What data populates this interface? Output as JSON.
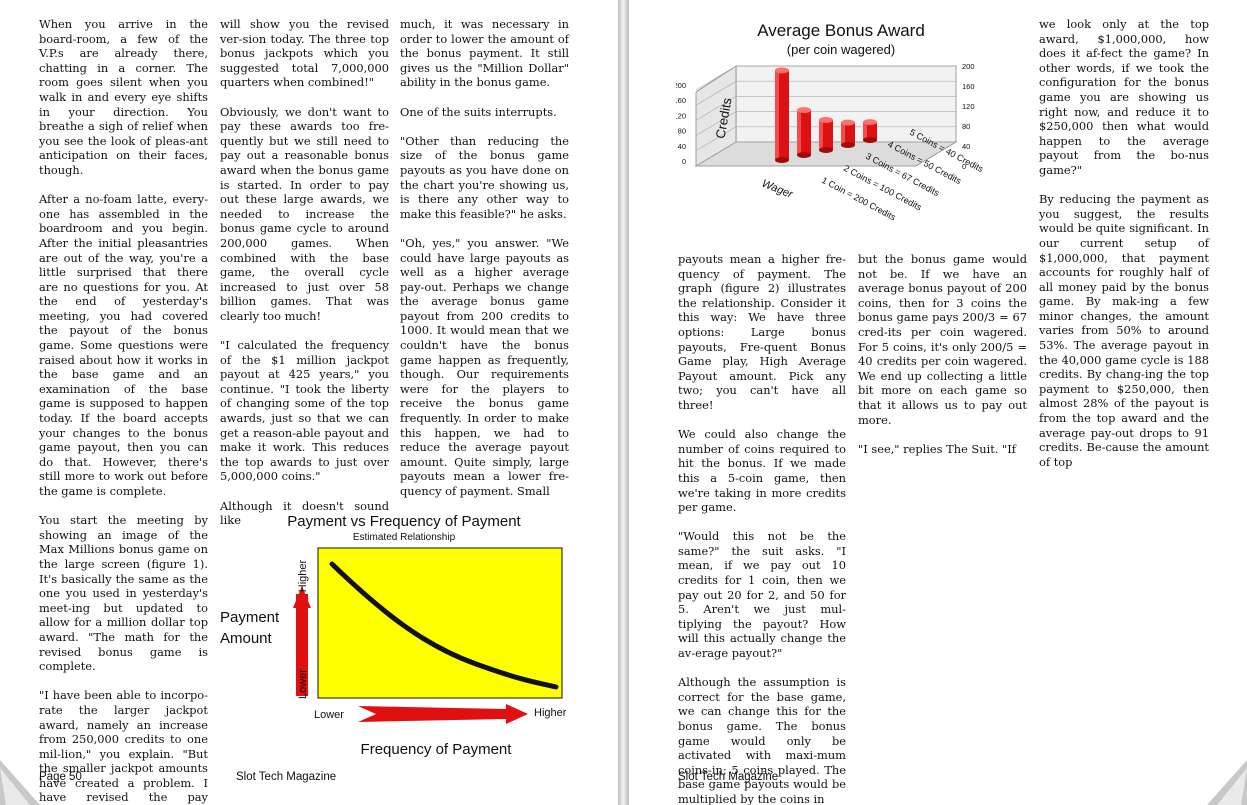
{
  "left_page": {
    "col1": [
      "When you arrive in the board-room, a few of the V.P.s are already there, chatting in a corner. The room goes silent when you walk in and every eye shifts in your direction. You breathe a sigh of relief when you see the look of pleas-ant anticipation on their faces, though.",
      "After a no-foam latte, every-one has assembled in the boardroom and you begin. After the initial pleasantries are out of the way, you're a little surprised that there are no questions for you. At the end of yesterday's meeting, you had covered the payout of the bonus game. Some questions were raised about how it works in the base game and an examination of the base game is supposed to happen today. If the board accepts your changes to the bonus game payout, then you can do that. However, there's still more to work out before the game is complete.",
      "You start the meeting by showing an image of the Max Millions bonus game on the large screen (figure 1). It's basically the same as the one you used in yesterday's meet-ing but updated to allow for a million dollar top award. \"The math for the revised bonus game is complete.",
      "\"I have been able to incorpo-rate the larger jackpot award, namely an increase from 250,000 credits to one mil-lion,\" you explain. \"But the smaller jackpot amounts have created a problem. I have revised the pay schedule and"
    ],
    "col2": [
      "will show you the revised ver-sion today. The three top bonus jackpots which you suggested total 7,000,000 quarters when combined!\"",
      "Obviously, we don't want to pay these awards too fre-quently but we still need to pay out a reasonable bonus award when the bonus game is started. In order to pay out these large awards, we needed to increase the bonus game cycle to around 200,000 games. When combined with the base game, the overall cycle increased to just over 58 billion games. That was clearly too much!",
      "\"I calculated the frequency of the $1 million jackpot payout at 425 years,\" you continue. \"I took the liberty of changing some of the top awards, just so that we can get a reason-able payout and make it work. This reduces the top awards to just over 5,000,000 coins.\"",
      "Although it doesn't sound like"
    ],
    "col3": [
      "much, it was necessary in order to lower the amount of the bonus payment. It still gives us the \"Million Dollar\" ability in the bonus game.",
      "One of the suits interrupts.",
      "\"Other than reducing the size of the bonus game payouts as you have done on the chart you're showing us, is there any other way to make this feasible?\" he asks.",
      "\"Oh, yes,\" you answer. \"We could have large payouts as well as a higher average pay-out. Perhaps we change the average bonus game payout from 200 credits to 1000. It would mean that we couldn't have the bonus game happen as frequently, though. Our requirements were for the players to receive the bonus game frequently. In order to make this happen, we had to reduce the average payout amount. Quite simply, large payouts mean a lower fre-quency of payment. Small"
    ],
    "page_number": "Page 50",
    "magazine": "Slot Tech Magazine"
  },
  "figure2": {
    "title": "Payment vs Frequency of Payment",
    "subtitle": "Estimated Relationship",
    "y_axis_label": "Payment Amount",
    "y_high": "Higher",
    "y_low": "Lower",
    "x_axis_label": "Frequency of Payment",
    "x_low": "Lower",
    "x_high": "Higher",
    "plot_color": "#ffff00",
    "arrow_color": "#e01010"
  },
  "chart_data": {
    "type": "bar",
    "title": "Average Bonus Award",
    "subtitle": "(per coin wagered)",
    "ylabel": "Credits",
    "xlabel": "Wager",
    "ylim": [
      0,
      200
    ],
    "y_ticks": [
      "200",
      "160",
      "120",
      "80",
      "40",
      "0"
    ],
    "right_ticks": [
      "200",
      "160",
      "120",
      "80",
      "40",
      "0"
    ],
    "categories": [
      "1 Coin",
      "2 Coins",
      "3 Coins",
      "4 Coins",
      "5 Coins"
    ],
    "values": [
      200,
      100,
      67,
      50,
      40
    ],
    "category_labels": [
      "1 Coin = 200 Credits",
      "2 Coins = 100 Credits",
      "3 Coins = 67 Credits",
      "4 Coins = 50 Credits",
      "5 Coins = 40 Credits"
    ],
    "bar_color": "#dd1111"
  },
  "right_page": {
    "col1": [
      "payouts mean a higher fre-quency of payment. The graph (figure 2) illustrates the relationship. Consider it this way: We have three options: Large bonus payouts, Fre-quent Bonus Game play, High Average Payout amount. Pick any two; you can't have all three!",
      "We could also change the number of coins required to hit the bonus. If we made this a 5-coin game, then we're taking in more credits per game.",
      "\"Would this not be the same?\" the suit asks. \"I mean, if we pay out 10 credits for 1 coin, then we pay out 20 for 2, and 50 for 5. Aren't we just mul-tiplying the payout? How will this actually change the av-erage payout?\"",
      "Although the assumption is correct for the base game, we can change this for the bonus game. The bonus game would only be activated with maxi-mum coins-in; 5 coins played. The base game payouts would be multiplied by the coins in"
    ],
    "col2": [
      "but the bonus game would not be. If we have an average bonus payout of 200 coins, then for 3 coins the bonus game pays 200/3 = 67 cred-its per coin wagered. For 5 coins, it's only 200/5 = 40 credits per coin wagered. We end up collecting a little bit more on each game so that it allows us to pay out more.",
      "\"I see,\" replies The Suit. \"If"
    ],
    "col3": [
      "we look only at the top award, $1,000,000, how does it af-fect the game? In other words, if we took the configuration for the bonus game you are showing us right now, and reduce it to $250,000 then what would happen to the average payout from the bo-nus game?\"",
      "By reducing the payment as you suggest, the results would be quite significant. In our current setup of $1,000,000, that payment accounts for roughly half of all money paid by the bonus game. By mak-ing a few minor changes, the amount varies from 50% to around 53%. The average payout in the 40,000 game cycle is 188 credits. By chang-ing the top payment to $250,000, then almost 28% of the payout is from the top award and the average pay-out drops to 91 credits. Be-cause the amount of top"
    ],
    "magazine": "Slot Tech Magazine"
  }
}
